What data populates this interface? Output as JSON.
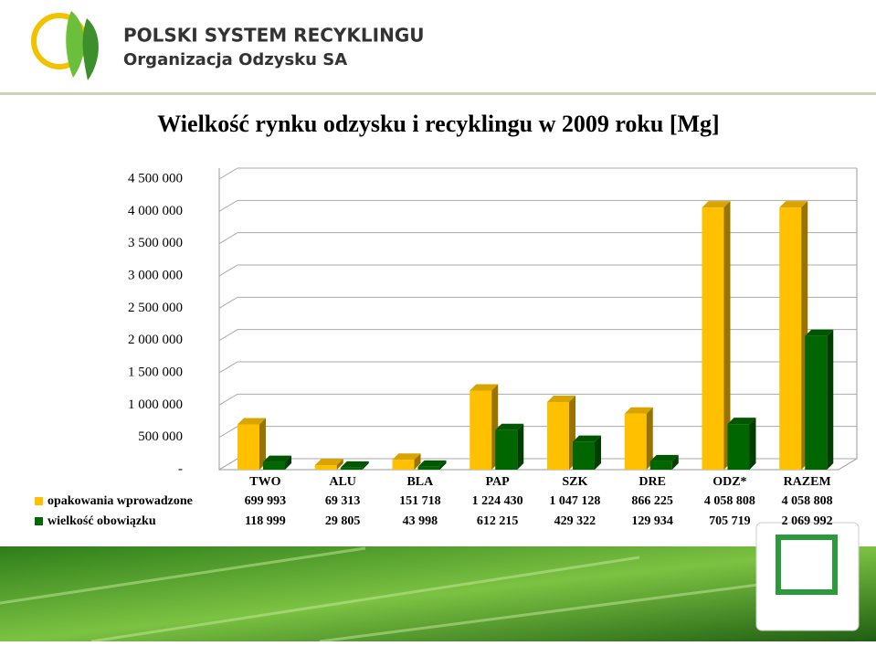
{
  "header": {
    "line1": "POLSKI SYSTEM RECYKLINGU",
    "line2": "Organizacja Odzysku SA"
  },
  "chart_data": {
    "type": "bar3d",
    "title": "Wielkość rynku odzysku i recyklingu w 2009 roku [Mg]",
    "categories": [
      "TWO",
      "ALU",
      "BLA",
      "PAP",
      "SZK",
      "DRE",
      "ODZ*",
      "RAZEM"
    ],
    "series": [
      {
        "name": "opakowania wprowadzone",
        "color": "#ffc000",
        "values": [
          699993,
          69313,
          151718,
          1224430,
          1047128,
          866225,
          4058808,
          4058808
        ],
        "value_labels": [
          "699 993",
          "69 313",
          "151 718",
          "1 224 430",
          "1 047 128",
          "866 225",
          "4 058 808",
          "4 058 808"
        ]
      },
      {
        "name": "wielkość obowiązku",
        "color": "#006600",
        "values": [
          118999,
          29805,
          43998,
          612215,
          429322,
          129934,
          705719,
          2069992
        ],
        "value_labels": [
          "118 999",
          "29 805",
          "43 998",
          "612 215",
          "429 322",
          "129 934",
          "705 719",
          "2 069 992"
        ]
      }
    ],
    "ylim": [
      0,
      4500000
    ],
    "yticks": [
      {
        "value": 0,
        "label": "-"
      },
      {
        "value": 500000,
        "label": "500 000"
      },
      {
        "value": 1000000,
        "label": "1 000 000"
      },
      {
        "value": 1500000,
        "label": "1 500 000"
      },
      {
        "value": 2000000,
        "label": "2 000 000"
      },
      {
        "value": 2500000,
        "label": "2 500 000"
      },
      {
        "value": 3000000,
        "label": "3 000 000"
      },
      {
        "value": 3500000,
        "label": "3 500 000"
      },
      {
        "value": 4000000,
        "label": "4 000 000"
      },
      {
        "value": 4500000,
        "label": "4 500 000"
      }
    ],
    "grid": true
  }
}
